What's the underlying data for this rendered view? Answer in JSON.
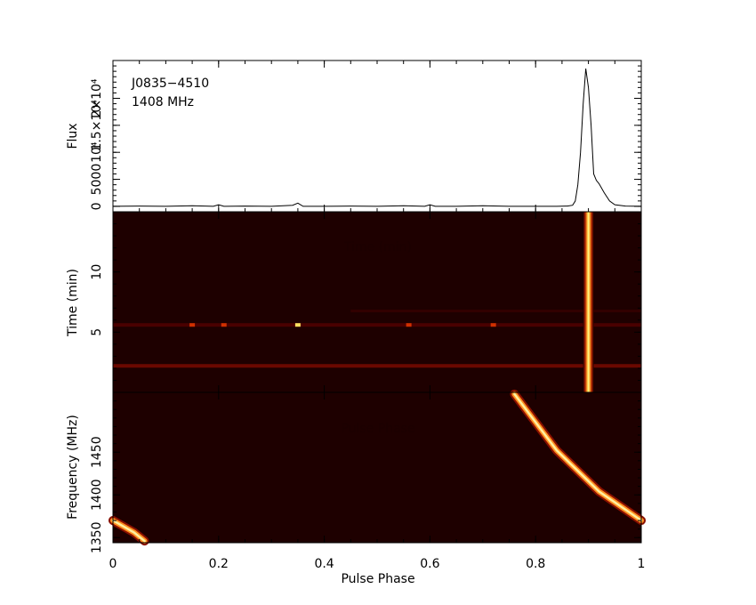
{
  "chart_data": [
    {
      "panel": "profile",
      "type": "line",
      "ylabel": "Flux",
      "annotation_lines": [
        "J0835−4510",
        "1408 MHz"
      ],
      "xlim": [
        0,
        1
      ],
      "ylim": [
        -1000,
        27000
      ],
      "y_tick_labels": [
        "0",
        "5000",
        "10⁴",
        "1.5×10⁴",
        "2×10⁴"
      ],
      "y_tick_values": [
        0,
        5000,
        10000,
        15000,
        20000
      ],
      "color": "#000000",
      "series": [
        {
          "x": [
            0,
            0.05,
            0.1,
            0.15,
            0.19,
            0.2,
            0.21,
            0.25,
            0.3,
            0.34,
            0.35,
            0.36,
            0.4,
            0.45,
            0.5,
            0.55,
            0.59,
            0.6,
            0.61,
            0.65,
            0.7,
            0.75,
            0.8,
            0.84,
            0.86,
            0.87,
            0.875,
            0.88,
            0.885,
            0.89,
            0.895,
            0.9,
            0.905,
            0.91,
            0.915,
            0.92,
            0.93,
            0.94,
            0.95,
            0.97,
            1.0
          ],
          "y": [
            0,
            50,
            0,
            100,
            0,
            300,
            0,
            50,
            0,
            200,
            600,
            0,
            0,
            50,
            0,
            100,
            0,
            300,
            0,
            0,
            100,
            0,
            0,
            0,
            50,
            200,
            1000,
            4000,
            10000,
            19000,
            25500,
            22000,
            15000,
            6000,
            4800,
            4200,
            2500,
            1000,
            300,
            50,
            0
          ]
        }
      ]
    },
    {
      "panel": "time-phase",
      "type": "heatmap",
      "ylabel": "Time (min)",
      "ghost_label": "Time (min)",
      "xlim": [
        0,
        1
      ],
      "ylim": [
        0,
        15
      ],
      "y_tick_values": [
        5,
        10
      ],
      "y_tick_labels": [
        "5",
        "10"
      ],
      "colormap": [
        "#1e0000",
        "#5a0000",
        "#a01000",
        "#e04000",
        "#ff9010",
        "#ffe060",
        "#ffffb0"
      ],
      "features": {
        "pulse_phase": 0.9,
        "pulse_width": 0.02,
        "rfi_rows_min": [
          5.6,
          2.2
        ],
        "faint_row_min": 6.8,
        "hot_spots_phase": [
          0.15,
          0.21,
          0.35,
          0.56,
          0.72
        ]
      }
    },
    {
      "panel": "frequency-phase",
      "type": "heatmap",
      "ylabel": "Frequency (MHz)",
      "xlabel": "Pulse Phase",
      "ghost_label": "Pulse Phase",
      "xlim": [
        0,
        1
      ],
      "ylim": [
        1344,
        1520
      ],
      "x_tick_values": [
        0,
        0.2,
        0.4,
        0.6,
        0.8,
        1.0
      ],
      "x_tick_labels": [
        "0",
        "0.2",
        "0.4",
        "0.6",
        "0.8",
        "1"
      ],
      "y_tick_values": [
        1350,
        1400,
        1450
      ],
      "y_tick_labels": [
        "1350",
        "1400",
        "1450"
      ],
      "sweep": {
        "main": [
          [
            0.76,
            1518
          ],
          [
            0.84,
            1452
          ],
          [
            0.92,
            1404
          ],
          [
            1.0,
            1370
          ]
        ],
        "wrap": [
          [
            0.0,
            1370
          ],
          [
            0.04,
            1356
          ],
          [
            0.06,
            1346
          ]
        ]
      }
    }
  ]
}
